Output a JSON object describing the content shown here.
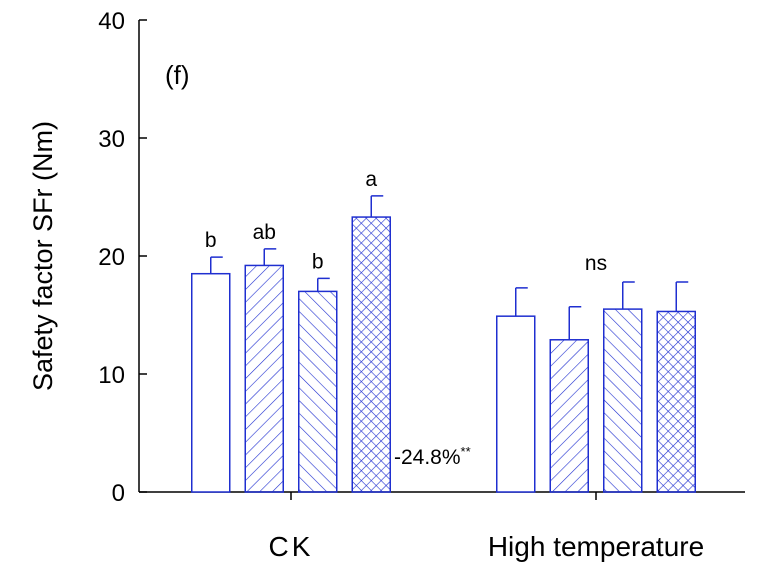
{
  "chart_data": {
    "type": "bar",
    "panel_label": "(f)",
    "y_label": "Safety factor SFr (Nm)",
    "categories": [
      "CK",
      "High temperature"
    ],
    "series": [
      {
        "color": "#1f2fd0",
        "pattern": "none",
        "values": [
          18.5,
          14.9
        ],
        "errors": [
          1.4,
          2.4
        ],
        "sig_labels": [
          "b",
          null
        ]
      },
      {
        "color": "#1f2fd0",
        "pattern": "forward",
        "values": [
          19.2,
          12.9
        ],
        "errors": [
          1.4,
          2.8
        ],
        "sig_labels": [
          "ab",
          null
        ]
      },
      {
        "color": "#1f2fd0",
        "pattern": "backward",
        "values": [
          17.0,
          15.5
        ],
        "errors": [
          1.1,
          2.3
        ],
        "sig_labels": [
          "b",
          null
        ]
      },
      {
        "color": "#1f2fd0",
        "pattern": "cross",
        "values": [
          23.3,
          15.3
        ],
        "errors": [
          1.8,
          2.5
        ],
        "sig_labels": [
          "a",
          null
        ]
      }
    ],
    "group_labels": [
      null,
      "ns"
    ],
    "annotation": {
      "text": "-24.8%",
      "superscript": "**"
    },
    "ylim": [
      0,
      40
    ],
    "yticks": [
      0,
      10,
      20,
      30,
      40
    ]
  }
}
